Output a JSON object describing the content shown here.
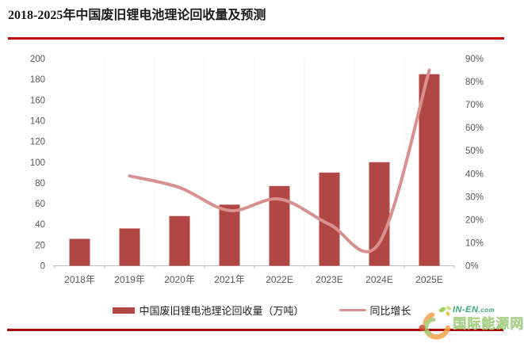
{
  "header": {
    "title": "2018-2025年中国废旧锂电池理论回收量及预测"
  },
  "legend": {
    "bar_label": "中国废旧锂电池理论回收量（万吨）",
    "line_label": "同比增长"
  },
  "watermark": {
    "site_main": "IN-EN",
    "site_tld": ".com",
    "name": "国际能源网"
  },
  "colors": {
    "bar": "#B04744",
    "line": "#D9918F",
    "rule_top": "#C00000",
    "rule_bottom": "#A80000",
    "axis_text": "#595959",
    "axis_line": "#BFBFBF",
    "grid": "#F3F3F3"
  },
  "chart_data": {
    "type": "bar+line combo",
    "title": "2018-2025年中国废旧锂电池理论回收量及预测",
    "categories": [
      "2018年",
      "2019年",
      "2020年",
      "2021年",
      "2022E",
      "2023E",
      "2024E",
      "2025E"
    ],
    "series": [
      {
        "name": "中国废旧锂电池理论回收量（万吨）",
        "type": "bar",
        "y_axis": "left",
        "values": [
          26,
          36,
          48,
          59,
          77,
          90,
          100,
          185
        ]
      },
      {
        "name": "同比增长",
        "type": "line",
        "y_axis": "right",
        "unit": "%",
        "values": [
          null,
          39,
          34,
          24,
          29,
          18,
          10,
          85
        ]
      }
    ],
    "left_axis": {
      "min": 0,
      "max": 200,
      "step": 20,
      "ticks": [
        "200",
        "180",
        "160",
        "140",
        "120",
        "100",
        "80",
        "60",
        "40",
        "20",
        "0"
      ]
    },
    "right_axis": {
      "min": 0,
      "max": 90,
      "step": 10,
      "unit": "%",
      "ticks": [
        "90%",
        "80%",
        "70%",
        "60%",
        "50%",
        "40%",
        "30%",
        "20%",
        "10%",
        "0%"
      ]
    },
    "grid": "faint vertical gridlines between categories",
    "legend_position": "bottom"
  }
}
